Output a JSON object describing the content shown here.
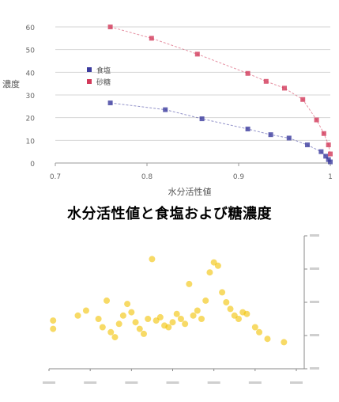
{
  "caption": "水分活性値と食塩および糖濃度",
  "chart_data": [
    {
      "type": "scatter",
      "title": "",
      "xlabel": "水分活性値",
      "ylabel": "濃度",
      "xlim": [
        0.7,
        1.0
      ],
      "ylim": [
        0,
        60
      ],
      "x_ticks": [
        0.7,
        0.8,
        0.9,
        1.0
      ],
      "x_tick_labels": [
        "0.7",
        "0.8",
        "0.9",
        "1"
      ],
      "y_ticks": [
        0,
        10,
        20,
        30,
        40,
        50,
        60
      ],
      "y_tick_labels": [
        "0",
        "10",
        "20",
        "30",
        "40",
        "50",
        "60"
      ],
      "legend_position": "left",
      "grid": true,
      "series": [
        {
          "name": "食塩",
          "color": "#3b3b9e",
          "points": [
            [
              0.76,
              26.5
            ],
            [
              0.82,
              23.5
            ],
            [
              0.86,
              19.5
            ],
            [
              0.91,
              15
            ],
            [
              0.935,
              12.5
            ],
            [
              0.955,
              11
            ],
            [
              0.975,
              8
            ],
            [
              0.99,
              5
            ],
            [
              0.995,
              3
            ],
            [
              0.998,
              1.5
            ],
            [
              1.0,
              0.5
            ]
          ]
        },
        {
          "name": "砂糖",
          "color": "#d23a5a",
          "points": [
            [
              0.76,
              60
            ],
            [
              0.805,
              55
            ],
            [
              0.855,
              48
            ],
            [
              0.91,
              39.5
            ],
            [
              0.93,
              36
            ],
            [
              0.95,
              33
            ],
            [
              0.97,
              28
            ],
            [
              0.985,
              19
            ],
            [
              0.993,
              13
            ],
            [
              0.998,
              8
            ],
            [
              1.0,
              4
            ]
          ]
        }
      ]
    },
    {
      "type": "scatter",
      "title": "",
      "xlabel": "",
      "ylabel": "",
      "xlim": [
        0.7,
        1.0
      ],
      "ylim": [
        0,
        400
      ],
      "x_ticks": [
        0.7,
        0.75,
        0.8,
        0.85,
        0.9,
        0.95,
        1.0
      ],
      "x_tick_labels": [
        "",
        "",
        "",
        "",
        "",
        "",
        ""
      ],
      "y_ticks": [
        0,
        100,
        200,
        300,
        400
      ],
      "y_tick_labels": [
        "",
        "",
        "",
        "",
        ""
      ],
      "grid": false,
      "series": [
        {
          "name": "",
          "color": "#f2c200",
          "points": [
            [
              0.705,
              145
            ],
            [
              0.705,
              120
            ],
            [
              0.735,
              160
            ],
            [
              0.745,
              175
            ],
            [
              0.76,
              150
            ],
            [
              0.765,
              125
            ],
            [
              0.77,
              205
            ],
            [
              0.775,
              110
            ],
            [
              0.78,
              95
            ],
            [
              0.785,
              135
            ],
            [
              0.79,
              160
            ],
            [
              0.795,
              195
            ],
            [
              0.8,
              170
            ],
            [
              0.805,
              140
            ],
            [
              0.81,
              120
            ],
            [
              0.815,
              105
            ],
            [
              0.82,
              150
            ],
            [
              0.825,
              330
            ],
            [
              0.83,
              145
            ],
            [
              0.835,
              155
            ],
            [
              0.84,
              130
            ],
            [
              0.845,
              125
            ],
            [
              0.85,
              140
            ],
            [
              0.855,
              165
            ],
            [
              0.86,
              150
            ],
            [
              0.865,
              135
            ],
            [
              0.87,
              255
            ],
            [
              0.875,
              160
            ],
            [
              0.88,
              175
            ],
            [
              0.885,
              150
            ],
            [
              0.89,
              205
            ],
            [
              0.895,
              290
            ],
            [
              0.9,
              320
            ],
            [
              0.905,
              310
            ],
            [
              0.91,
              230
            ],
            [
              0.915,
              200
            ],
            [
              0.92,
              180
            ],
            [
              0.925,
              160
            ],
            [
              0.93,
              150
            ],
            [
              0.935,
              170
            ],
            [
              0.94,
              165
            ],
            [
              0.95,
              125
            ],
            [
              0.955,
              110
            ],
            [
              0.965,
              90
            ],
            [
              0.985,
              80
            ]
          ]
        }
      ]
    }
  ]
}
